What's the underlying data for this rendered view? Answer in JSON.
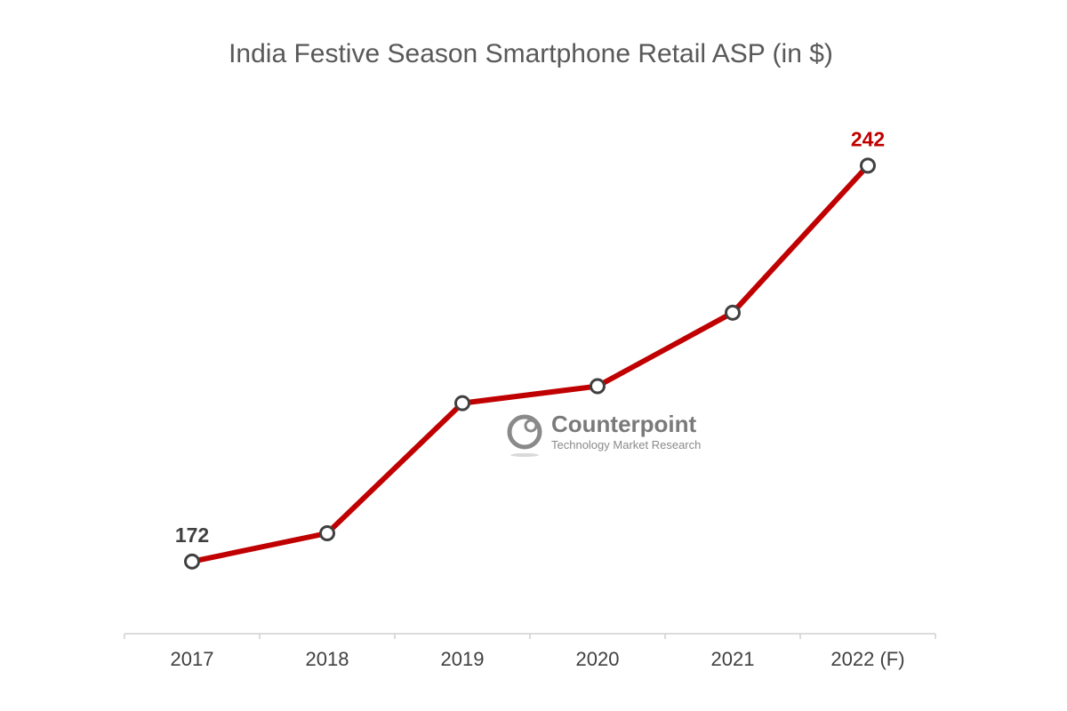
{
  "chart_data": {
    "type": "line",
    "title": "India Festive Season Smartphone Retail ASP (in $)",
    "categories": [
      "2017",
      "2018",
      "2019",
      "2020",
      "2021",
      "2022 (F)"
    ],
    "series": [
      {
        "values": [
          172,
          177,
          200,
          203,
          216,
          242
        ]
      }
    ],
    "data_labels": [
      {
        "index": 0,
        "text": "172"
      },
      {
        "index": 5,
        "text": "242"
      }
    ],
    "ylim": [
      155,
      265
    ],
    "grid": false,
    "legend": "none",
    "colors": {
      "line": "#c00000",
      "marker_stroke": "#404040",
      "marker_fill": "#ffffff",
      "label_first": "#404040",
      "label_last": "#c00000",
      "axis": "#d0d0d0"
    }
  },
  "watermark": {
    "name": "Counterpoint",
    "tagline": "Technology Market Research",
    "icon": "counterpoint-logo-icon"
  }
}
